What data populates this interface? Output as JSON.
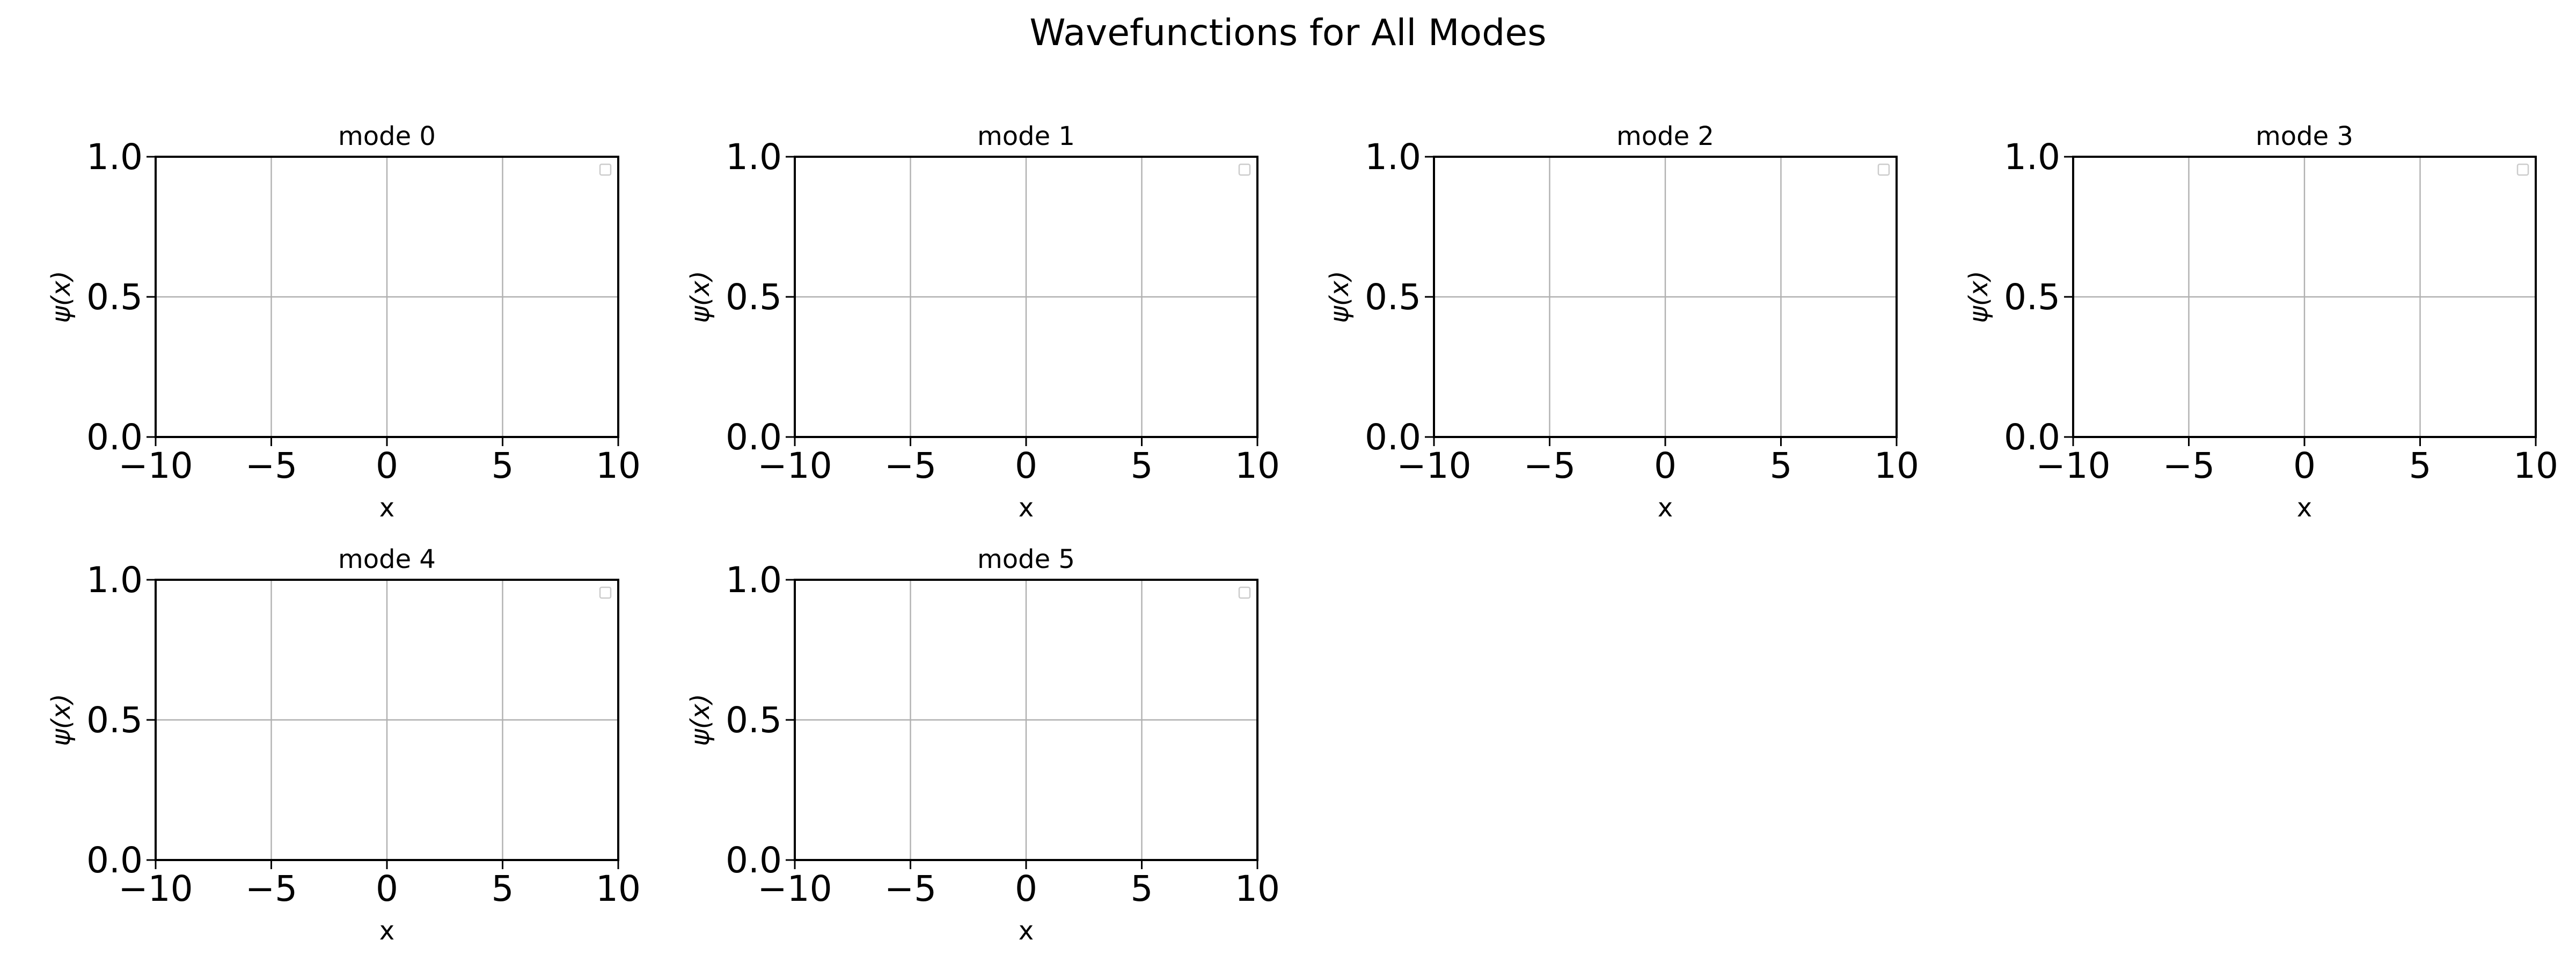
{
  "figure": {
    "title": "Wavefunctions for All Modes"
  },
  "chart_data": [
    {
      "type": "line",
      "title": "mode 0",
      "xlabel": "x",
      "ylabel": "ψ(x)",
      "xlim": [
        -10,
        10
      ],
      "ylim": [
        0,
        1
      ],
      "xticks": [
        -10,
        -5,
        0,
        5,
        10
      ],
      "xtick_labels": [
        "−10",
        "−5",
        "0",
        "5",
        "10"
      ],
      "yticks": [
        0,
        0.5,
        1
      ],
      "ytick_labels": [
        "0.0",
        "0.5",
        "1.0"
      ],
      "grid": true,
      "legend": "top-right",
      "series": []
    },
    {
      "type": "line",
      "title": "mode 1",
      "xlabel": "x",
      "ylabel": "ψ(x)",
      "xlim": [
        -10,
        10
      ],
      "ylim": [
        0,
        1
      ],
      "xticks": [
        -10,
        -5,
        0,
        5,
        10
      ],
      "xtick_labels": [
        "−10",
        "−5",
        "0",
        "5",
        "10"
      ],
      "yticks": [
        0,
        0.5,
        1
      ],
      "ytick_labels": [
        "0.0",
        "0.5",
        "1.0"
      ],
      "grid": true,
      "legend": "top-right",
      "series": []
    },
    {
      "type": "line",
      "title": "mode 2",
      "xlabel": "x",
      "ylabel": "ψ(x)",
      "xlim": [
        -10,
        10
      ],
      "ylim": [
        0,
        1
      ],
      "xticks": [
        -10,
        -5,
        0,
        5,
        10
      ],
      "xtick_labels": [
        "−10",
        "−5",
        "0",
        "5",
        "10"
      ],
      "yticks": [
        0,
        0.5,
        1
      ],
      "ytick_labels": [
        "0.0",
        "0.5",
        "1.0"
      ],
      "grid": true,
      "legend": "top-right",
      "series": []
    },
    {
      "type": "line",
      "title": "mode 3",
      "xlabel": "x",
      "ylabel": "ψ(x)",
      "xlim": [
        -10,
        10
      ],
      "ylim": [
        0,
        1
      ],
      "xticks": [
        -10,
        -5,
        0,
        5,
        10
      ],
      "xtick_labels": [
        "−10",
        "−5",
        "0",
        "5",
        "10"
      ],
      "yticks": [
        0,
        0.5,
        1
      ],
      "ytick_labels": [
        "0.0",
        "0.5",
        "1.0"
      ],
      "grid": true,
      "legend": "top-right",
      "series": []
    },
    {
      "type": "line",
      "title": "mode 4",
      "xlabel": "x",
      "ylabel": "ψ(x)",
      "xlim": [
        -10,
        10
      ],
      "ylim": [
        0,
        1
      ],
      "xticks": [
        -10,
        -5,
        0,
        5,
        10
      ],
      "xtick_labels": [
        "−10",
        "−5",
        "0",
        "5",
        "10"
      ],
      "yticks": [
        0,
        0.5,
        1
      ],
      "ytick_labels": [
        "0.0",
        "0.5",
        "1.0"
      ],
      "grid": true,
      "legend": "top-right",
      "series": []
    },
    {
      "type": "line",
      "title": "mode 5",
      "xlabel": "x",
      "ylabel": "ψ(x)",
      "xlim": [
        -10,
        10
      ],
      "ylim": [
        0,
        1
      ],
      "xticks": [
        -10,
        -5,
        0,
        5,
        10
      ],
      "xtick_labels": [
        "−10",
        "−5",
        "0",
        "5",
        "10"
      ],
      "yticks": [
        0,
        0.5,
        1
      ],
      "ytick_labels": [
        "0.0",
        "0.5",
        "1.0"
      ],
      "grid": true,
      "legend": "top-right",
      "series": []
    }
  ],
  "colors": {
    "axes": "#000000",
    "grid": "#b0b0b0",
    "legend_border": "#cccccc"
  }
}
